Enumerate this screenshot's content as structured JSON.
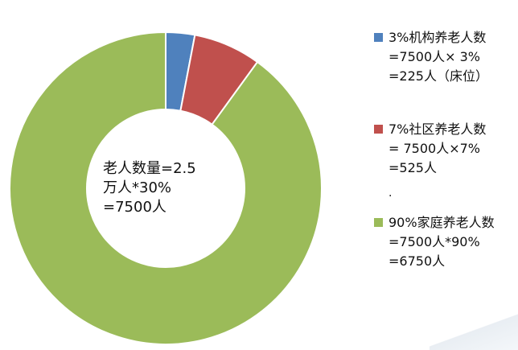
{
  "chart_data": {
    "type": "pie",
    "donut": true,
    "categories": [
      "3%机构养老人数",
      "7%社区养老人数",
      "90%家庭养老人数"
    ],
    "values": [
      3,
      7,
      90
    ],
    "colors": [
      "#4f81bd",
      "#c0504d",
      "#9bbb59"
    ],
    "center_text": [
      "老人数量=2.5",
      "万人*30%",
      " =7500人"
    ],
    "legend": [
      {
        "color": "#4f81bd",
        "lines": [
          "3%机构养老人数",
          "=7500人× 3%",
          "=225人（床位）"
        ]
      },
      {
        "color": "#c0504d",
        "lines": [
          "7%社区养老人数",
          "= 7500人×7%",
          "=525人"
        ]
      },
      {
        "color": "#9bbb59",
        "lines": [
          "90%家庭养老人数",
          "=7500人*90%",
          "=6750人"
        ]
      }
    ],
    "legend_placement": "right",
    "separator": "."
  }
}
